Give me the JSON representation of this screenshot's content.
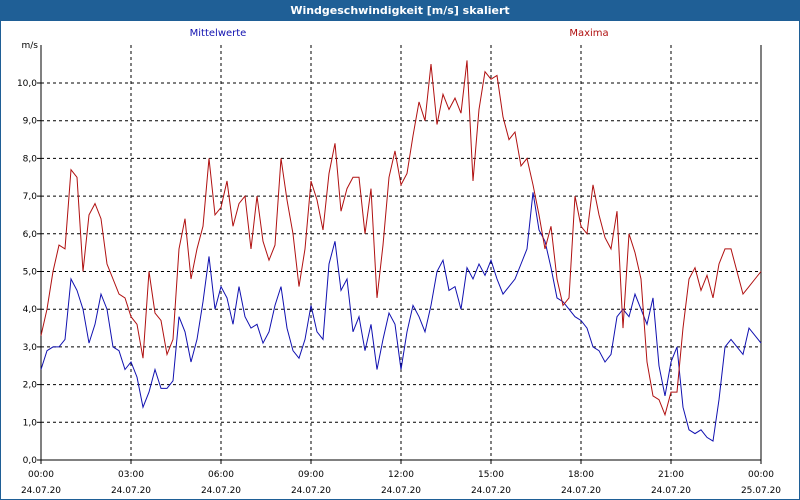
{
  "window": {
    "title": "Windgeschwindigkeit [m/s] skaliert"
  },
  "colors": {
    "titlebar": "#1f5f96",
    "mittelwerte": "#1010b0",
    "maxima": "#b01010",
    "grid": "#000000"
  },
  "chart_data": {
    "type": "line",
    "title": "Windgeschwindigkeit [m/s] skaliert",
    "ylabel": "m/s",
    "ylim": [
      0,
      11
    ],
    "xlim": [
      0,
      24
    ],
    "grid": true,
    "legend": "top",
    "y_ticks": [
      "0,0",
      "1,0",
      "2,0",
      "3,0",
      "4,0",
      "5,0",
      "6,0",
      "7,0",
      "8,0",
      "9,0",
      "10,0"
    ],
    "x_ticks": [
      {
        "time": "00:00",
        "date": "24.07.20"
      },
      {
        "time": "03:00",
        "date": "24.07.20"
      },
      {
        "time": "06:00",
        "date": "24.07.20"
      },
      {
        "time": "09:00",
        "date": "24.07.20"
      },
      {
        "time": "12:00",
        "date": "24.07.20"
      },
      {
        "time": "15:00",
        "date": "24.07.20"
      },
      {
        "time": "18:00",
        "date": "24.07.20"
      },
      {
        "time": "21:00",
        "date": "24.07.20"
      },
      {
        "time": "00:00",
        "date": "25.07.20"
      }
    ],
    "x_hours": [
      0,
      0.2,
      0.4,
      0.6,
      0.8,
      1.0,
      1.2,
      1.4,
      1.6,
      1.8,
      2.0,
      2.2,
      2.4,
      2.6,
      2.8,
      3.0,
      3.2,
      3.4,
      3.6,
      3.8,
      4.0,
      4.2,
      4.4,
      4.6,
      4.8,
      5.0,
      5.2,
      5.4,
      5.6,
      5.8,
      6.0,
      6.2,
      6.4,
      6.6,
      6.8,
      7.0,
      7.2,
      7.4,
      7.6,
      7.8,
      8.0,
      8.2,
      8.4,
      8.6,
      8.8,
      9.0,
      9.2,
      9.4,
      9.6,
      9.8,
      10.0,
      10.2,
      10.4,
      10.6,
      10.8,
      11.0,
      11.2,
      11.4,
      11.6,
      11.8,
      12.0,
      12.2,
      12.4,
      12.6,
      12.8,
      13.0,
      13.2,
      13.4,
      13.6,
      13.8,
      14.0,
      14.2,
      14.4,
      14.6,
      14.8,
      15.0,
      15.2,
      15.4,
      15.6,
      15.8,
      16.0,
      16.2,
      16.4,
      16.6,
      16.8,
      17.0,
      17.2,
      17.4,
      17.6,
      17.8,
      18.0,
      18.2,
      18.4,
      18.6,
      18.8,
      19.0,
      19.2,
      19.4,
      19.6,
      19.8,
      20.0,
      20.2,
      20.4,
      20.6,
      20.8,
      21.0,
      21.2,
      21.4,
      21.6,
      21.8,
      22.0,
      22.2,
      22.4,
      22.6,
      22.8,
      23.0,
      23.2,
      23.4,
      23.6,
      23.8,
      24.0
    ],
    "series": [
      {
        "name": "Mittelwerte",
        "color": "#1010b0",
        "values": [
          2.4,
          2.9,
          3.0,
          3.0,
          3.2,
          4.8,
          4.5,
          4.0,
          3.1,
          3.6,
          4.4,
          4.0,
          3.0,
          2.9,
          2.4,
          2.6,
          2.2,
          1.4,
          1.8,
          2.4,
          1.9,
          1.9,
          2.1,
          3.8,
          3.4,
          2.6,
          3.2,
          4.2,
          5.4,
          4.0,
          4.6,
          4.3,
          3.6,
          4.6,
          3.8,
          3.5,
          3.6,
          3.1,
          3.4,
          4.1,
          4.6,
          3.5,
          2.9,
          2.7,
          3.2,
          4.1,
          3.4,
          3.2,
          5.2,
          5.8,
          4.5,
          4.8,
          3.4,
          3.8,
          2.9,
          3.6,
          2.4,
          3.2,
          3.9,
          3.6,
          2.4,
          3.4,
          4.1,
          3.8,
          3.4,
          4.1,
          5.0,
          5.3,
          4.5,
          4.6,
          4.0,
          5.1,
          4.8,
          5.2,
          4.9,
          5.3,
          4.8,
          4.4,
          4.6,
          4.8,
          5.2,
          5.6,
          7.1,
          6.1,
          5.8,
          5.1,
          4.3,
          4.2,
          4.0,
          3.8,
          3.7,
          3.5,
          3.0,
          2.9,
          2.6,
          2.8,
          3.8,
          4.0,
          3.8,
          4.4,
          4.0,
          3.6,
          4.3,
          2.5,
          1.7,
          2.6,
          3.0,
          1.4,
          0.8,
          0.7,
          0.8,
          0.6,
          0.5,
          1.6,
          3.0,
          3.2,
          3.0,
          2.8,
          3.5,
          3.3,
          3.1
        ]
      },
      {
        "name": "Maxima",
        "color": "#b01010",
        "values": [
          3.3,
          4.0,
          5.0,
          5.7,
          5.6,
          7.7,
          7.5,
          5.0,
          6.5,
          6.8,
          6.4,
          5.2,
          4.8,
          4.4,
          4.3,
          3.8,
          3.6,
          2.7,
          5.0,
          3.9,
          3.7,
          2.8,
          3.2,
          5.6,
          6.4,
          4.8,
          5.6,
          6.2,
          8.0,
          6.5,
          6.7,
          7.4,
          6.2,
          6.8,
          7.0,
          5.6,
          7.0,
          5.8,
          5.3,
          5.7,
          8.0,
          6.9,
          6.0,
          4.6,
          5.6,
          7.4,
          6.9,
          6.1,
          7.6,
          8.4,
          6.6,
          7.2,
          7.5,
          7.5,
          6.0,
          7.2,
          4.3,
          5.7,
          7.5,
          8.2,
          7.3,
          7.6,
          8.6,
          9.5,
          9.0,
          10.5,
          8.9,
          9.7,
          9.3,
          9.6,
          9.2,
          10.6,
          7.4,
          9.3,
          10.3,
          10.1,
          10.2,
          9.1,
          8.5,
          8.7,
          7.8,
          8.0,
          7.3,
          6.5,
          5.6,
          6.2,
          4.8,
          4.1,
          4.3,
          7.0,
          6.2,
          6.0,
          7.3,
          6.5,
          5.9,
          5.6,
          6.6,
          3.5,
          6.0,
          5.5,
          4.8,
          2.6,
          1.7,
          1.6,
          1.2,
          1.8,
          1.8,
          3.5,
          4.8,
          5.1,
          4.5,
          4.9,
          4.3,
          5.2,
          5.6,
          5.6,
          5.0,
          4.4,
          4.6,
          4.8,
          5.0
        ]
      }
    ]
  }
}
